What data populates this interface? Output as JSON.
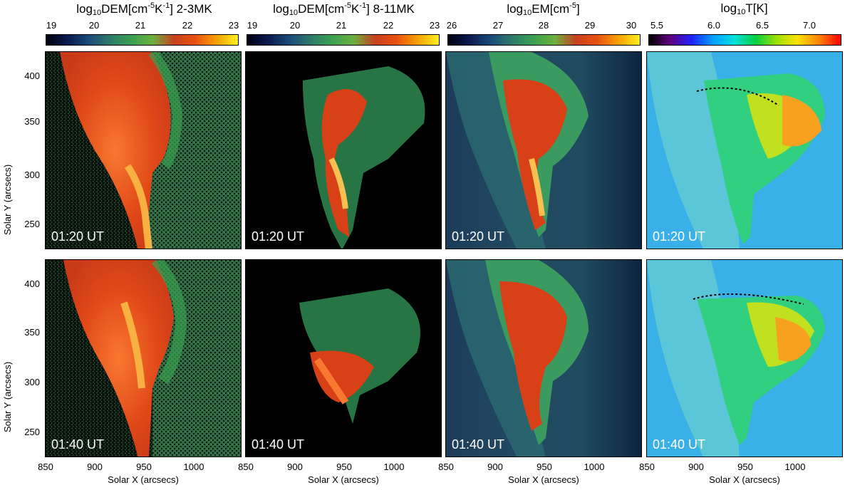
{
  "colorbars": [
    {
      "title_pre": "log",
      "title_sub": "10",
      "title_mid": "DEM[cm",
      "title_sup": "-5",
      "title_mid2": "K",
      "title_sup2": "-1",
      "title_post": "]   2-3MK",
      "ticks": [
        "19",
        "20",
        "21",
        "22",
        "23"
      ],
      "colormap": "rainbow-dem"
    },
    {
      "title_pre": "log",
      "title_sub": "10",
      "title_mid": "DEM[cm",
      "title_sup": "-5",
      "title_mid2": "K",
      "title_sup2": "-1",
      "title_post": "]   8-11MK",
      "ticks": [
        "19",
        "20",
        "21",
        "22",
        "23"
      ],
      "colormap": "rainbow-dem"
    },
    {
      "title_pre": "log",
      "title_sub": "10",
      "title_mid": "EM[cm",
      "title_sup": "-5",
      "title_mid2": "",
      "title_sup2": "",
      "title_post": "]",
      "ticks": [
        "26",
        "27",
        "28",
        "29",
        "30"
      ],
      "colormap": "rainbow-dem"
    },
    {
      "title_pre": "log",
      "title_sub": "10",
      "title_mid": "T[K]",
      "title_sup": "",
      "title_mid2": "",
      "title_sup2": "",
      "title_post": "",
      "ticks": [
        "5.5",
        "6.0",
        "6.5",
        "7.0"
      ],
      "colormap": "rainbow-temp"
    }
  ],
  "panels": {
    "row1_time": "01:20 UT",
    "row2_time": "01:40 UT"
  },
  "axes": {
    "ylabel": "Solar Y (arcsecs)",
    "xlabel": "Solar X (arcsecs)",
    "yticks": [
      "400",
      "350",
      "300",
      "250"
    ],
    "xticks": [
      "850",
      "900",
      "950",
      "1000"
    ]
  },
  "colors": {
    "background_dark": "#000000",
    "em_background": "#1e4a5a",
    "temp_background": "#3ab0e8"
  }
}
